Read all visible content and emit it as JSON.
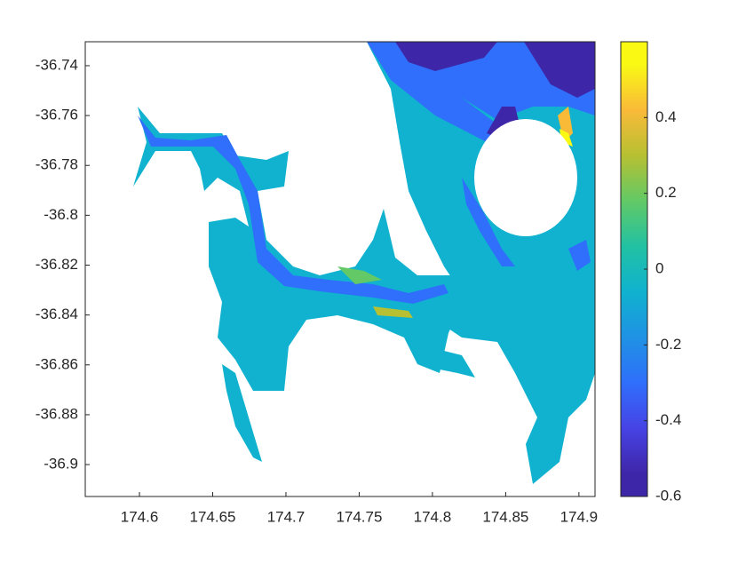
{
  "chart_data": {
    "type": "contourf",
    "xlim": [
      174.563,
      174.911
    ],
    "xticks": [
      174.6,
      174.65,
      174.7,
      174.75,
      174.8,
      174.85,
      174.9
    ],
    "ylim": [
      -36.9128,
      -36.7304
    ],
    "yticks": [
      -36.9,
      -36.88,
      -36.86,
      -36.84,
      -36.82,
      -36.8,
      -36.78,
      -36.76,
      -36.74
    ],
    "clim": [
      -0.6,
      0.6
    ],
    "cticks": [
      -0.6,
      -0.4,
      -0.2,
      0,
      0.2,
      0.4
    ],
    "colormap": [
      "#3e26a8",
      "#4743e5",
      "#2f6ffb",
      "#1f92e4",
      "#10b2cf",
      "#21c1a3",
      "#62c966",
      "#b7c032",
      "#f9ba38",
      "#f9f914"
    ]
  }
}
